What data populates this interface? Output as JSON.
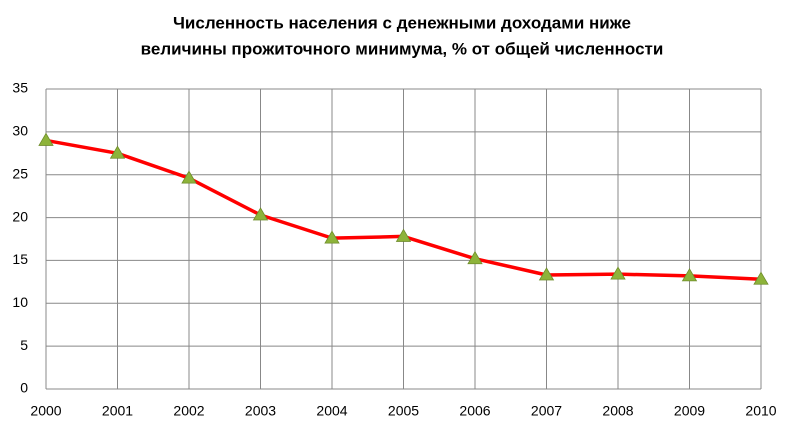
{
  "chart_data": {
    "type": "line",
    "title": [
      "Численность населения с денежными доходами ниже",
      "величины прожиточного минимума, % от общей численности"
    ],
    "x": [
      2000,
      2001,
      2002,
      2003,
      2004,
      2005,
      2006,
      2007,
      2008,
      2009,
      2010
    ],
    "values": [
      29.0,
      27.5,
      24.6,
      20.3,
      17.6,
      17.8,
      15.2,
      13.3,
      13.4,
      13.2,
      12.8
    ],
    "color": "#ff0000",
    "marker_color": "#8db33a",
    "xlim": [
      2000,
      2010
    ],
    "xticks": [
      2000,
      2001,
      2002,
      2003,
      2004,
      2005,
      2006,
      2007,
      2008,
      2009,
      2010
    ],
    "ylim": [
      0,
      35
    ],
    "yticks": [
      0,
      5,
      10,
      15,
      20,
      25,
      30,
      35
    ],
    "grid": true
  }
}
